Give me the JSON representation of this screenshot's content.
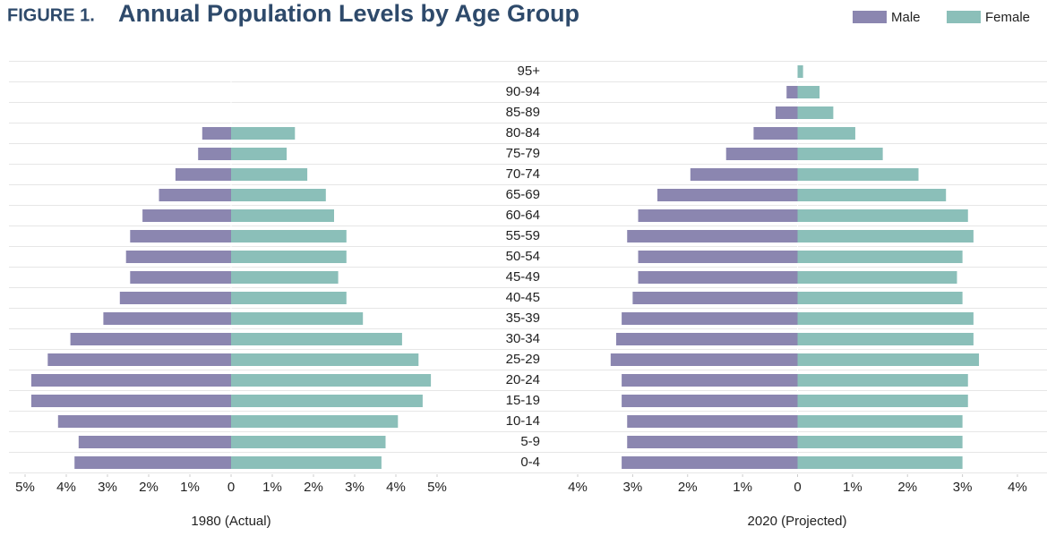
{
  "figure_label": "FIGURE 1.",
  "title": "Annual Population Levels by Age Group",
  "age_groups": [
    "0-4",
    "5-9",
    "10-14",
    "15-19",
    "20-24",
    "25-29",
    "30-34",
    "35-39",
    "40-45",
    "45-49",
    "50-54",
    "55-59",
    "60-64",
    "65-69",
    "70-74",
    "75-79",
    "80-84",
    "85-89",
    "90-94",
    "95+"
  ],
  "chart_data": [
    {
      "type": "bar",
      "orientation": "horizontal",
      "xlabel": "1980 (Actual)",
      "xlim": [
        -5,
        5
      ],
      "xticks": [
        {
          "value": -5,
          "label": "5%"
        },
        {
          "value": -4,
          "label": "4%"
        },
        {
          "value": -3,
          "label": "3%"
        },
        {
          "value": -2,
          "label": "2%"
        },
        {
          "value": -1,
          "label": "1%"
        },
        0,
        {
          "value": 1,
          "label": "1%"
        },
        {
          "value": 2,
          "label": "2%"
        },
        {
          "value": 3,
          "label": "3%"
        },
        {
          "value": 4,
          "label": "4%"
        },
        {
          "value": 5,
          "label": "5%"
        }
      ],
      "series": [
        {
          "name": "Male",
          "color": "#8b86b0",
          "values": [
            -3.8,
            -3.7,
            -4.2,
            -4.85,
            -4.85,
            -4.45,
            -3.9,
            -3.1,
            -2.7,
            -2.45,
            -2.55,
            -2.45,
            -2.15,
            -1.75,
            -1.35,
            -0.8,
            -0.7,
            0,
            0,
            0
          ]
        },
        {
          "name": "Female",
          "color": "#8bbfb9",
          "values": [
            3.65,
            3.75,
            4.05,
            4.65,
            4.85,
            4.55,
            4.15,
            3.2,
            2.8,
            2.6,
            2.8,
            2.8,
            2.5,
            2.3,
            1.85,
            1.35,
            1.55,
            0,
            0,
            0
          ]
        }
      ]
    },
    {
      "type": "bar",
      "orientation": "horizontal",
      "xlabel": "2020 (Projected)",
      "xlim": [
        -4,
        4
      ],
      "xticks": [
        {
          "value": -4,
          "label": "4%"
        },
        {
          "value": -3,
          "label": "3%"
        },
        {
          "value": -2,
          "label": "2%"
        },
        {
          "value": -1,
          "label": "1%"
        },
        0,
        {
          "value": 1,
          "label": "1%"
        },
        {
          "value": 2,
          "label": "2%"
        },
        {
          "value": 3,
          "label": "3%"
        },
        {
          "value": 4,
          "label": "4%"
        }
      ],
      "series": [
        {
          "color": "#8b86b0",
          "values": [
            -3.2,
            -3.1,
            -3.1,
            -3.2,
            -3.2,
            -3.4,
            -3.3,
            -3.2,
            -3.0,
            -2.9,
            -2.9,
            -3.1,
            -2.9,
            -2.55,
            -1.95,
            -1.3,
            -0.8,
            -0.4,
            -0.2,
            0
          ]
        },
        {
          "color": "#8bbfb9",
          "values": [
            3.0,
            3.0,
            3.0,
            3.1,
            3.1,
            3.3,
            3.2,
            3.2,
            3.0,
            2.9,
            3.0,
            3.2,
            3.1,
            2.7,
            2.2,
            1.55,
            1.05,
            0.65,
            0.4,
            0.1
          ]
        }
      ]
    }
  ]
}
